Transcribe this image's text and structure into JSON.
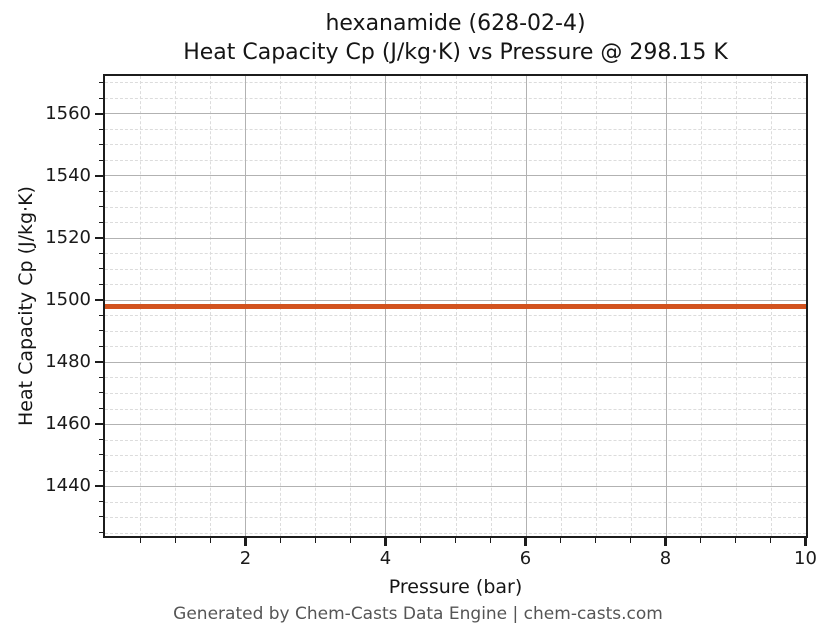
{
  "chart_data": {
    "type": "line",
    "title": "hexanamide (628-02-4)",
    "subtitle": "Heat Capacity Cp (J/kg·K) vs Pressure @ 298.15 K",
    "xlabel": "Pressure (bar)",
    "ylabel": "Heat Capacity Cp (J/kg·K)",
    "xlim": [
      0,
      10
    ],
    "ylim": [
      1424,
      1572
    ],
    "xticks": [
      2,
      4,
      6,
      8,
      10
    ],
    "yticks": [
      1440,
      1460,
      1480,
      1500,
      1520,
      1540,
      1560
    ],
    "x_minor_step": 0.5,
    "y_minor_step": 5,
    "grid": {
      "major_color": "#b2b2b2",
      "minor_color": "#dcdcdc",
      "minor_style": "dashed",
      "shown": true
    },
    "legend": "none",
    "series": [
      {
        "name": "Heat Capacity Cp",
        "color": "#d2521e",
        "x": [
          0,
          10
        ],
        "y": [
          1497.8,
          1497.8
        ],
        "note": "constant value ~1497.8 J/kg·K across 0-10 bar"
      }
    ],
    "footer": "Generated by Chem-Casts Data Engine | chem-casts.com"
  }
}
